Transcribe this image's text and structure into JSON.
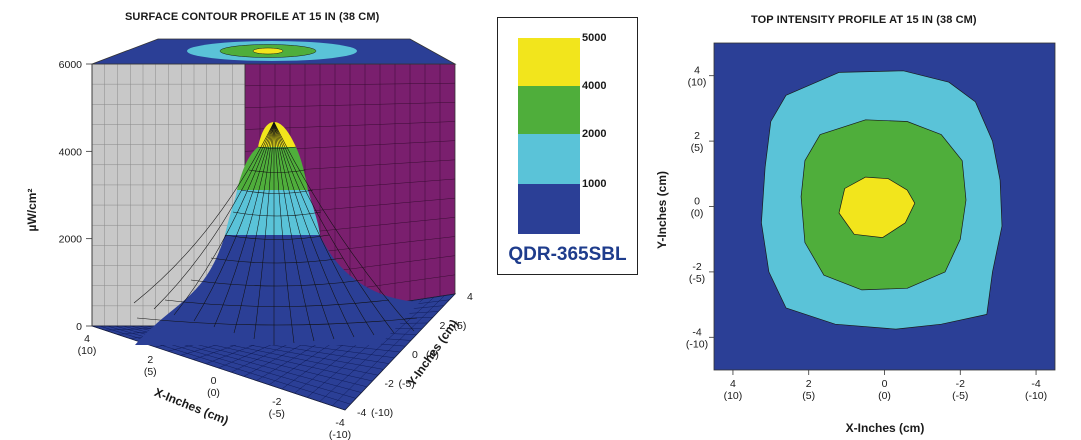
{
  "chart_data": [
    {
      "type": "surface",
      "title": "SURFACE CONTOUR PROFILE AT 15 IN (38 CM)",
      "xlabel": "X-Inches (cm)",
      "ylabel": "Y-Inches (cm)",
      "zlabel": "µW/cm²",
      "x_ticks": [
        {
          "main": "4",
          "sub": "(10)"
        },
        {
          "main": "2",
          "sub": "(5)"
        },
        {
          "main": "0",
          "sub": "(0)"
        },
        {
          "main": "-2",
          "sub": "(-5)"
        },
        {
          "main": "-4",
          "sub": "(-10)"
        }
      ],
      "y_ticks": [
        {
          "main": "4",
          "sub": "(10)"
        },
        {
          "main": "2",
          "sub": "(5)"
        },
        {
          "main": "0",
          "sub": "(0)"
        },
        {
          "main": "-2",
          "sub": "(-5)"
        },
        {
          "main": "-4",
          "sub": "(-10)"
        }
      ],
      "z_ticks": [
        "0",
        "2000",
        "4000",
        "6000"
      ],
      "zlim": [
        0,
        6000
      ],
      "peak_value": 4600,
      "peak_location": [
        -0.5,
        0
      ],
      "colors": {
        "left_wall": "#c8c8c8",
        "right_wall": "#7a1f6e",
        "floor": "#2b3f96",
        "top_plane": "#2b3f96"
      }
    },
    {
      "type": "contour",
      "title": "TOP INTENSITY PROFILE AT 15 IN (38 CM)",
      "xlabel": "X-Inches (cm)",
      "ylabel": "Y-Inches (cm)",
      "x_ticks": [
        {
          "main": "4",
          "sub": "(10)"
        },
        {
          "main": "2",
          "sub": "(5)"
        },
        {
          "main": "0",
          "sub": "(0)"
        },
        {
          "main": "-2",
          "sub": "(-5)"
        },
        {
          "main": "-4",
          "sub": "(-10)"
        }
      ],
      "y_ticks": [
        {
          "main": "4",
          "sub": "(10)"
        },
        {
          "main": "2",
          "sub": "(5)"
        },
        {
          "main": "0",
          "sub": "(0)"
        },
        {
          "main": "-2",
          "sub": "(-5)"
        },
        {
          "main": "-4",
          "sub": "(-10)"
        }
      ],
      "xlim": [
        4.5,
        -4.5
      ],
      "ylim": [
        -5,
        5
      ],
      "levels": [
        {
          "min": 0,
          "max": 1000,
          "color": "#2b3f96"
        },
        {
          "min": 1000,
          "max": 2000,
          "color": "#5ac3d8"
        },
        {
          "min": 2000,
          "max": 4000,
          "color": "#4fae3b"
        },
        {
          "min": 4000,
          "max": 5000,
          "color": "#f2e51c"
        }
      ],
      "contours": [
        {
          "level": 1000,
          "color": "#5ac3d8",
          "points": [
            [
              2.6,
              3.4
            ],
            [
              1.2,
              4.1
            ],
            [
              -0.5,
              4.15
            ],
            [
              -1.7,
              3.8
            ],
            [
              -2.4,
              3.2
            ],
            [
              -2.85,
              2.0
            ],
            [
              -3.05,
              0.8
            ],
            [
              -3.1,
              -0.6
            ],
            [
              -2.85,
              -2.0
            ],
            [
              -2.7,
              -3.3
            ],
            [
              -1.5,
              -3.6
            ],
            [
              -0.3,
              -3.75
            ],
            [
              1.3,
              -3.6
            ],
            [
              2.6,
              -3.1
            ],
            [
              3.05,
              -2.0
            ],
            [
              3.25,
              -0.5
            ],
            [
              3.15,
              1.2
            ],
            [
              3.0,
              2.6
            ]
          ]
        },
        {
          "level": 2000,
          "color": "#4fae3b",
          "points": [
            [
              1.7,
              2.2
            ],
            [
              0.5,
              2.65
            ],
            [
              -0.6,
              2.6
            ],
            [
              -1.5,
              2.2
            ],
            [
              -2.05,
              1.4
            ],
            [
              -2.15,
              0.2
            ],
            [
              -2.0,
              -1.0
            ],
            [
              -1.6,
              -2.0
            ],
            [
              -0.6,
              -2.5
            ],
            [
              0.6,
              -2.55
            ],
            [
              1.6,
              -2.1
            ],
            [
              2.1,
              -1.1
            ],
            [
              2.2,
              0.3
            ],
            [
              2.1,
              1.4
            ]
          ]
        },
        {
          "level": 4000,
          "color": "#f2e51c",
          "points": [
            [
              -0.1,
              0.85
            ],
            [
              -0.6,
              0.5
            ],
            [
              -0.8,
              0.1
            ],
            [
              -0.55,
              -0.5
            ],
            [
              0.05,
              -0.95
            ],
            [
              0.8,
              -0.85
            ],
            [
              1.2,
              -0.2
            ],
            [
              1.05,
              0.55
            ],
            [
              0.5,
              0.9
            ]
          ]
        }
      ]
    }
  ],
  "legend": {
    "values": [
      "5000",
      "4000",
      "2000",
      "1000"
    ],
    "colors": [
      "#f2e51c",
      "#4fae3b",
      "#5ac3d8",
      "#2b3f96"
    ],
    "model": "QDR-365SBL"
  }
}
